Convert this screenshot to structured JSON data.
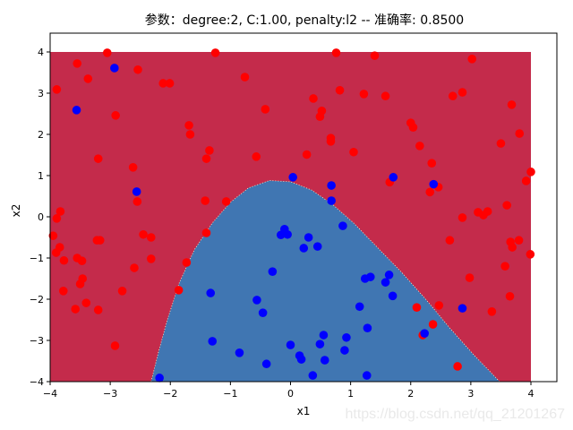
{
  "window": {
    "watermark": "https://blog.csdn.net/qq_21201267"
  },
  "colors": {
    "region_class_0": "#c42b4b",
    "region_class_1": "#4076b2",
    "points_class_0": "#ff0000",
    "points_class_1": "#0000ff",
    "boundary": "#fff6c8",
    "axes": "#000000",
    "background": "#ffffff"
  },
  "chart_data": {
    "type": "scatter",
    "title": "参数：degree:2, C:1.00, penalty:l2 -- 准确率: 0.8500",
    "xlabel": "x1",
    "ylabel": "x2",
    "xlim": [
      -4,
      4.4
    ],
    "ylim": [
      -4,
      4.45
    ],
    "xticks": [
      -4,
      -3,
      -2,
      -1,
      0,
      1,
      2,
      3,
      4
    ],
    "yticks": [
      -4,
      -3,
      -2,
      -1,
      0,
      1,
      2,
      3,
      4
    ],
    "xtick_labels": [
      "−4",
      "−3",
      "−2",
      "−1",
      "0",
      "1",
      "2",
      "3",
      "4"
    ],
    "ytick_labels": [
      "−4",
      "−3",
      "−2",
      "−1",
      "0",
      "1",
      "2",
      "3",
      "4"
    ],
    "grid": false,
    "legend": null,
    "background_regions": {
      "extent": {
        "x": [
          -4,
          4
        ],
        "y": [
          -4,
          4
        ]
      },
      "description": "Decision regions of polynomial (degree 2) logistic regression: blue = class 1 inside parabola-like boundary, crimson = class 0 outside",
      "boundary_points": [
        [
          -2.32,
          -4.0
        ],
        [
          -2.2,
          -3.3
        ],
        [
          -2.05,
          -2.5
        ],
        [
          -1.85,
          -1.6
        ],
        [
          -1.6,
          -0.8
        ],
        [
          -1.3,
          -0.15
        ],
        [
          -1.0,
          0.35
        ],
        [
          -0.7,
          0.7
        ],
        [
          -0.35,
          0.88
        ],
        [
          0.0,
          0.85
        ],
        [
          0.35,
          0.65
        ],
        [
          0.7,
          0.3
        ],
        [
          1.05,
          -0.15
        ],
        [
          1.45,
          -0.75
        ],
        [
          1.85,
          -1.35
        ],
        [
          2.25,
          -2.0
        ],
        [
          2.65,
          -2.7
        ],
        [
          3.05,
          -3.35
        ],
        [
          3.48,
          -4.0
        ]
      ]
    },
    "series": [
      {
        "name": "class 0",
        "color": "#ff0000",
        "points": [
          [
            -3.05,
            3.98
          ],
          [
            -1.25,
            3.98
          ],
          [
            0.76,
            3.98
          ],
          [
            1.4,
            3.91
          ],
          [
            3.02,
            3.83
          ],
          [
            -3.89,
            3.09
          ],
          [
            -3.37,
            3.35
          ],
          [
            -2.91,
            2.46
          ],
          [
            -3.55,
            3.72
          ],
          [
            -2.54,
            3.57
          ],
          [
            -2.12,
            3.24
          ],
          [
            -2.01,
            3.24
          ],
          [
            -0.76,
            3.39
          ],
          [
            -0.42,
            2.61
          ],
          [
            0.38,
            2.87
          ],
          [
            0.82,
            3.07
          ],
          [
            1.22,
            2.98
          ],
          [
            1.58,
            2.93
          ],
          [
            2.7,
            2.93
          ],
          [
            2.86,
            3.02
          ],
          [
            -1.69,
            2.22
          ],
          [
            -1.67,
            2.0
          ],
          [
            -1.35,
            1.61
          ],
          [
            -1.4,
            1.41
          ],
          [
            -3.2,
            1.41
          ],
          [
            -2.62,
            1.2
          ],
          [
            -0.57,
            1.46
          ],
          [
            0.27,
            1.51
          ],
          [
            0.67,
            1.91
          ],
          [
            0.67,
            1.83
          ],
          [
            0.52,
            2.57
          ],
          [
            0.49,
            2.43
          ],
          [
            1.05,
            1.57
          ],
          [
            2.15,
            1.72
          ],
          [
            2.0,
            2.28
          ],
          [
            2.04,
            2.17
          ],
          [
            1.65,
            0.84
          ],
          [
            2.32,
            0.6
          ],
          [
            2.35,
            1.3
          ],
          [
            3.5,
            1.78
          ],
          [
            3.81,
            2.02
          ],
          [
            3.68,
            2.72
          ],
          [
            4.0,
            1.09
          ],
          [
            3.92,
            0.87
          ],
          [
            3.6,
            0.28
          ],
          [
            3.21,
            0.04
          ],
          [
            3.28,
            0.13
          ],
          [
            2.46,
            0.72
          ],
          [
            2.86,
            -0.02
          ],
          [
            2.65,
            -0.57
          ],
          [
            3.12,
            0.11
          ],
          [
            3.66,
            -0.61
          ],
          [
            3.8,
            -0.57
          ],
          [
            3.99,
            -0.91
          ],
          [
            3.69,
            -0.74
          ],
          [
            3.57,
            -1.2
          ],
          [
            2.98,
            -1.48
          ],
          [
            3.65,
            -1.93
          ],
          [
            3.35,
            -2.3
          ],
          [
            2.1,
            -2.2
          ],
          [
            2.47,
            -2.15
          ],
          [
            2.37,
            -2.61
          ],
          [
            2.2,
            -2.87
          ],
          [
            2.78,
            -3.63
          ],
          [
            -3.83,
            0.13
          ],
          [
            -3.89,
            -0.04
          ],
          [
            -3.95,
            -0.46
          ],
          [
            -3.84,
            -0.74
          ],
          [
            -3.9,
            -0.87
          ],
          [
            -3.77,
            -1.06
          ],
          [
            -3.22,
            -0.57
          ],
          [
            -3.17,
            -0.57
          ],
          [
            -3.55,
            -1.0
          ],
          [
            -3.47,
            -1.07
          ],
          [
            -2.55,
            0.37
          ],
          [
            -2.45,
            -0.43
          ],
          [
            -2.32,
            -0.5
          ],
          [
            -2.32,
            -1.02
          ],
          [
            -3.46,
            -1.5
          ],
          [
            -3.5,
            -1.63
          ],
          [
            -3.78,
            -1.8
          ],
          [
            -2.8,
            -1.8
          ],
          [
            -2.6,
            -1.24
          ],
          [
            -1.73,
            -1.11
          ],
          [
            -1.4,
            -0.39
          ],
          [
            -1.07,
            0.37
          ],
          [
            -1.86,
            -1.78
          ],
          [
            -3.58,
            -2.24
          ],
          [
            -3.4,
            -2.09
          ],
          [
            -3.2,
            -2.26
          ],
          [
            -2.92,
            -3.13
          ],
          [
            -1.42,
            0.39
          ]
        ]
      },
      {
        "name": "class 1",
        "color": "#0000ff",
        "points": [
          [
            -2.93,
            3.61
          ],
          [
            -3.56,
            2.59
          ],
          [
            -2.56,
            0.61
          ],
          [
            0.04,
            0.96
          ],
          [
            0.68,
            0.76
          ],
          [
            1.71,
            0.96
          ],
          [
            2.38,
            0.79
          ],
          [
            0.68,
            0.39
          ],
          [
            0.87,
            -0.22
          ],
          [
            -0.1,
            -0.3
          ],
          [
            -0.1,
            -0.37
          ],
          [
            -0.16,
            -0.44
          ],
          [
            -0.05,
            -0.43
          ],
          [
            0.3,
            -0.5
          ],
          [
            0.22,
            -0.76
          ],
          [
            0.45,
            -0.72
          ],
          [
            -0.3,
            -1.33
          ],
          [
            1.24,
            -1.5
          ],
          [
            1.33,
            -1.46
          ],
          [
            1.64,
            -1.41
          ],
          [
            1.58,
            -1.59
          ],
          [
            1.7,
            -1.92
          ],
          [
            -0.56,
            -2.02
          ],
          [
            -0.46,
            -2.33
          ],
          [
            1.15,
            -2.18
          ],
          [
            1.28,
            -2.7
          ],
          [
            0.55,
            -2.87
          ],
          [
            0.93,
            -2.93
          ],
          [
            0.49,
            -3.09
          ],
          [
            0.0,
            -3.11
          ],
          [
            0.9,
            -3.24
          ],
          [
            0.15,
            -3.37
          ],
          [
            0.18,
            -3.46
          ],
          [
            0.57,
            -3.48
          ],
          [
            -0.4,
            -3.57
          ],
          [
            0.37,
            -3.85
          ],
          [
            1.27,
            -3.85
          ],
          [
            -2.18,
            -3.91
          ],
          [
            -1.33,
            -1.85
          ],
          [
            -1.3,
            -3.02
          ],
          [
            -0.85,
            -3.3
          ],
          [
            2.86,
            -2.22
          ],
          [
            2.23,
            -2.83
          ]
        ]
      }
    ]
  }
}
